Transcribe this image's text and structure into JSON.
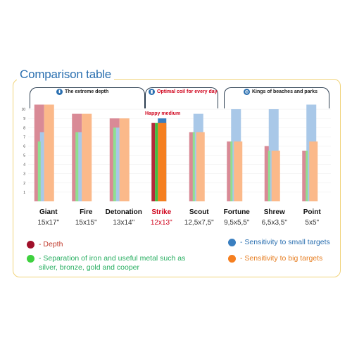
{
  "title": "Comparison table",
  "groups": [
    {
      "label": "The extreme depth",
      "icon": "depth-icon",
      "color": "#1a1a1a"
    },
    {
      "label": "Optimal coil for every day",
      "icon": "coil-icon",
      "color": "#d0021b"
    },
    {
      "label": "Kings of beaches and parks",
      "icon": "beach-icon",
      "color": "#1a1a1a"
    }
  ],
  "happy_medium": "Happy medium",
  "chart_data": {
    "type": "bar",
    "categories": [
      "Giant",
      "Fire",
      "Detonation",
      "Strike",
      "Scout",
      "Fortune",
      "Shrew",
      "Point"
    ],
    "sizes": [
      "15x17\"",
      "15x15\"",
      "13x14\"",
      "12x13\"",
      "12,5x7,5\"",
      "9,5x5,5\"",
      "6,5x3,5\"",
      "5x5\""
    ],
    "highlight": "Strike",
    "ylim": [
      0,
      11
    ],
    "yticks": [
      "1",
      "2",
      "3",
      "4",
      "5",
      "6",
      "7",
      "8",
      "9",
      "10"
    ],
    "series": [
      {
        "name": "Depth",
        "color": "#b22a3a",
        "values": [
          10.5,
          9.5,
          9.0,
          8.5,
          7.5,
          6.5,
          6.0,
          5.5
        ]
      },
      {
        "name": "Separation of iron and useful metal such as silver, bronze, gold and cooper",
        "color": "#3fbf3f",
        "values": [
          6.5,
          7.5,
          8.0,
          8.5,
          7.5,
          6.5,
          5.5,
          5.5
        ]
      },
      {
        "name": "Sensitivity to small targets",
        "color": "#3a7fc0",
        "values": [
          7.5,
          7.5,
          8.0,
          9.0,
          9.5,
          10.0,
          10.0,
          10.5
        ]
      },
      {
        "name": "Sensitivity to big targets",
        "color": "#f57f20",
        "values": [
          10.5,
          9.5,
          9.0,
          8.5,
          7.5,
          6.5,
          5.5,
          6.5
        ]
      }
    ]
  },
  "legend": {
    "depth": "- Depth",
    "separation": "- Separation of iron and useful metal such as silver, bronze, gold and cooper",
    "small": "- Sensitivity to small targets",
    "big": "- Sensitivity to big targets"
  }
}
